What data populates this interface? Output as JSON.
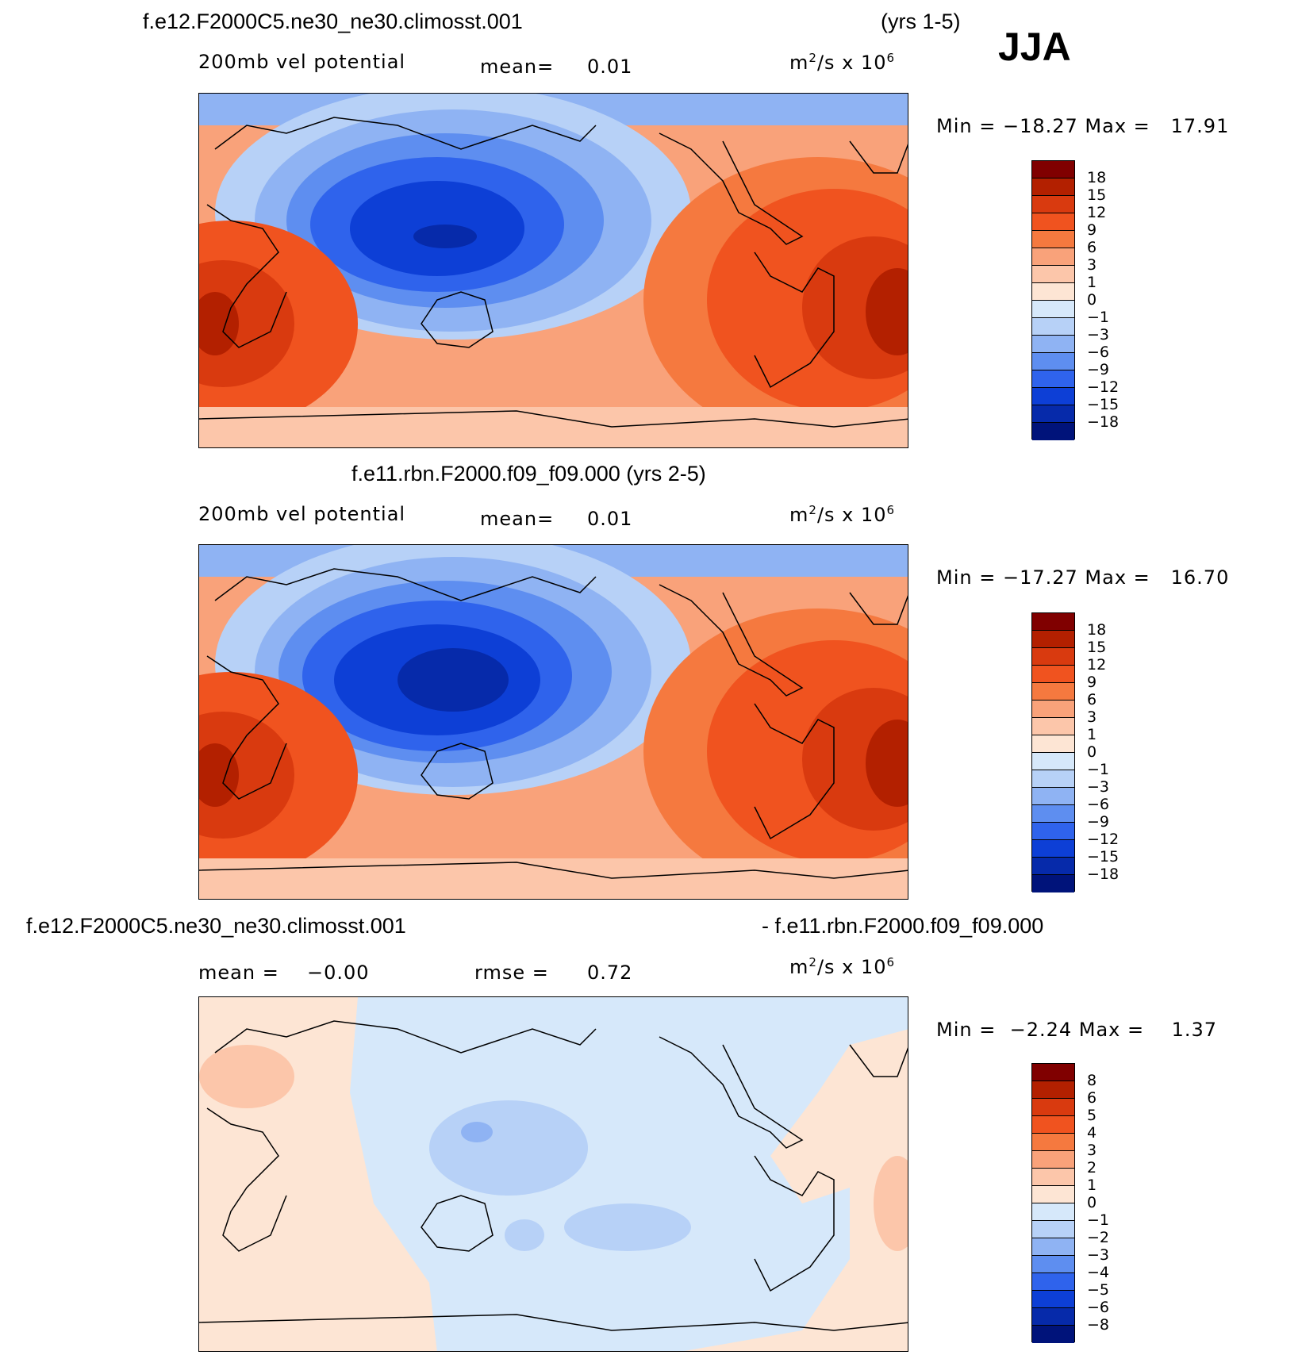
{
  "season": "JJA",
  "panels": [
    {
      "case_left": "f.e12.F2000C5.ne30_ne30.climosst.001",
      "case_right": "(yrs 1-5)",
      "variable": "200mb vel potential",
      "stat1_label": "mean=",
      "stat1_value": "0.01",
      "units_base": "m",
      "units_exp1": "2",
      "units_mid": "/s x 10",
      "units_exp2": "6",
      "minmax": "Min = −18.27 Max =   17.91",
      "colorbar_labels": [
        "18",
        "15",
        "12",
        "9",
        "6",
        "3",
        "1",
        "0",
        "−1",
        "−3",
        "−6",
        "−9",
        "−12",
        "−15",
        "−18"
      ]
    },
    {
      "case_full": "f.e11.rbn.F2000.f09_f09.000 (yrs 2-5)",
      "variable": "200mb vel potential",
      "stat1_label": "mean=",
      "stat1_value": "0.01",
      "units_base": "m",
      "units_exp1": "2",
      "units_mid": "/s x 10",
      "units_exp2": "6",
      "minmax": "Min = −17.27 Max =   16.70",
      "colorbar_labels": [
        "18",
        "15",
        "12",
        "9",
        "6",
        "3",
        "1",
        "0",
        "−1",
        "−3",
        "−6",
        "−9",
        "−12",
        "−15",
        "−18"
      ]
    },
    {
      "case_left": "f.e12.F2000C5.ne30_ne30.climosst.001",
      "case_right": "- f.e11.rbn.F2000.f09_f09.000",
      "stat1_label": "mean =",
      "stat1_value": "−0.00",
      "stat2_label": "rmse =",
      "stat2_value": "0.72",
      "units_base": "m",
      "units_exp1": "2",
      "units_mid": "/s x 10",
      "units_exp2": "6",
      "minmax": "Min =  −2.24 Max =    1.37",
      "colorbar_labels": [
        "8",
        "6",
        "5",
        "4",
        "3",
        "2",
        "1",
        "0",
        "−1",
        "−2",
        "−3",
        "−4",
        "−5",
        "−6",
        "−8"
      ]
    }
  ],
  "colors": {
    "diverging": [
      "#800000",
      "#b32000",
      "#d93a0f",
      "#f0531f",
      "#f5793f",
      "#f9a27a",
      "#fcc6aa",
      "#fde5d4",
      "#d6e8fa",
      "#b7d1f7",
      "#8fb3f3",
      "#5e8ef0",
      "#2f63ec",
      "#0d3fd6",
      "#062aaa",
      "#00137a"
    ],
    "continent_line": "#000000"
  }
}
